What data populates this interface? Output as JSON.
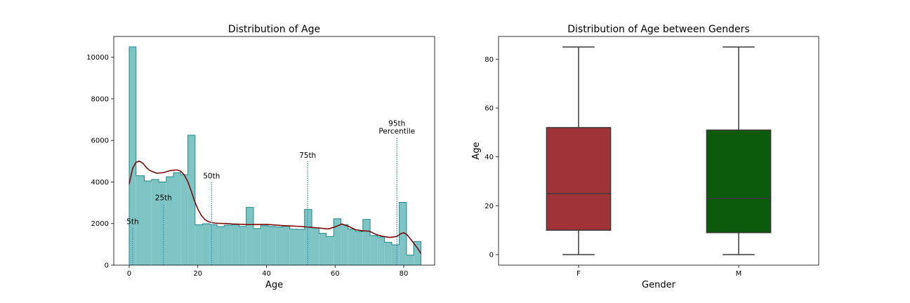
{
  "chart_data": [
    {
      "type": "histogram",
      "title": "Distribution of Age",
      "xlabel": "Age",
      "ylabel": "",
      "xlim": [
        -4.5,
        89
      ],
      "ylim": [
        0,
        11000
      ],
      "xticks": [
        0,
        20,
        40,
        60,
        80
      ],
      "yticks": [
        0,
        2000,
        4000,
        6000,
        8000,
        10000
      ],
      "bin_edges": [
        0,
        2,
        4.4,
        6.5,
        8.6,
        10.8,
        12.9,
        15.0,
        17.1,
        19.2,
        21.4,
        23.5,
        25.6,
        27.7,
        29.9,
        32.0,
        34.1,
        36.2,
        38.3,
        40.5,
        42.6,
        44.7,
        46.8,
        49.0,
        51.1,
        53.2,
        55.3,
        57.4,
        59.6,
        61.7,
        63.8,
        65.9,
        68.1,
        70.2,
        72.3,
        74.4,
        76.5,
        78.7,
        80.8,
        82.9,
        85.0
      ],
      "counts": [
        10500,
        4300,
        4050,
        4120,
        4000,
        4250,
        4450,
        4350,
        6250,
        1940,
        1990,
        1950,
        1850,
        1920,
        1950,
        1860,
        2780,
        1760,
        1900,
        1860,
        1840,
        1870,
        1730,
        1720,
        2680,
        1790,
        1530,
        1380,
        2230,
        1950,
        1730,
        1620,
        2200,
        1420,
        1360,
        1100,
        980,
        3020,
        480,
        1130
      ],
      "bar_color": "#7fc4c4",
      "edge_color": "#1c8a8a",
      "kde": {
        "x": [
          0,
          1,
          2,
          3,
          4,
          5,
          6,
          8,
          10,
          12,
          14,
          15,
          16,
          17,
          18,
          19,
          20,
          21,
          22,
          23,
          24,
          25,
          26,
          28,
          30,
          35,
          40,
          45,
          50,
          55,
          58,
          60,
          62,
          64,
          66,
          68,
          70,
          72,
          74,
          76,
          78,
          79,
          80,
          81,
          82,
          84,
          85
        ],
        "y": [
          3900,
          4650,
          4950,
          5000,
          4900,
          4700,
          4550,
          4420,
          4450,
          4550,
          4580,
          4520,
          4350,
          4050,
          3600,
          3100,
          2700,
          2400,
          2200,
          2100,
          2050,
          2020,
          2010,
          2000,
          1980,
          1950,
          1960,
          1900,
          1860,
          1790,
          1740,
          1840,
          1980,
          1860,
          1700,
          1650,
          1630,
          1470,
          1380,
          1330,
          1380,
          1500,
          1560,
          1460,
          1250,
          820,
          560
        ],
        "color": "#7b0b0b"
      },
      "percentiles": [
        {
          "label": "5th",
          "x": 1,
          "height": 1800
        },
        {
          "label": "25th",
          "x": 10,
          "height": 2950
        },
        {
          "label": "50th",
          "x": 24,
          "height": 4000
        },
        {
          "label": "75th",
          "x": 52,
          "height": 5000
        },
        {
          "label": "95th\nPercentile",
          "x": 78,
          "height": 6150
        }
      ],
      "percentile_line_color": "#3a8fba"
    },
    {
      "type": "boxplot",
      "title": "Distribution of Age between Genders",
      "xlabel": "Gender",
      "ylabel": "Age",
      "ylim": [
        -4.3,
        89.3
      ],
      "yticks": [
        0,
        20,
        40,
        60,
        80
      ],
      "categories": [
        "F",
        "M"
      ],
      "boxes": [
        {
          "category": "F",
          "min": 0,
          "q1": 10,
          "median": 25,
          "q3": 52,
          "max": 85,
          "color": "#a03335"
        },
        {
          "category": "M",
          "min": 0,
          "q1": 9,
          "median": 23,
          "q3": 51,
          "max": 85,
          "color": "#0c5a0c"
        }
      ]
    }
  ]
}
